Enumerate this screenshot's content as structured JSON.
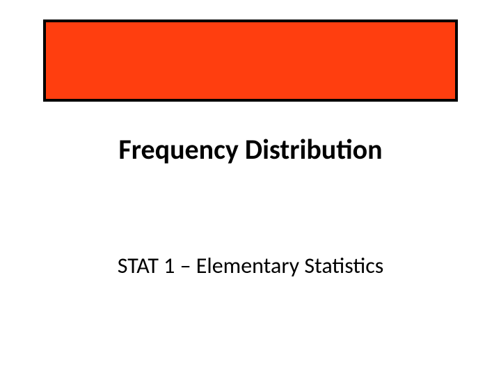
{
  "slide": {
    "title": "Frequency Distribution",
    "subtitle": "STAT 1 – Elementary Statistics"
  },
  "styles": {
    "banner_fill": "#ff3e0f",
    "banner_border": "#000000",
    "banner_border_width": 4,
    "background": "#ffffff",
    "title_fontsize": 40,
    "title_weight": "bold",
    "subtitle_fontsize": 32,
    "text_color": "#000000",
    "font_family": "Calibri"
  }
}
